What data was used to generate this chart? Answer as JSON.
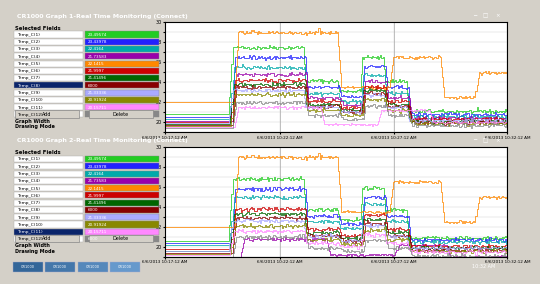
{
  "title1": "CR1000 Graph 1-Real Time Monitoring (Connect)",
  "title2": "CR1000 Graph 2-Real Time Monitoring (Connect)",
  "bg_outer": "#d4d0c8",
  "title_bar_color": "#0a246a",
  "plot_bg": "#ffffff",
  "grid_color": "#cccccc",
  "sidebar_bg": "#d4d0c8",
  "ylim": [
    19,
    30
  ],
  "n_points": 300,
  "time_labels": [
    "6/6/2013 10:17:12 AM",
    "6/6/2013 10:22:12 AM",
    "6/6/2013 10:27:12 AM",
    "6/6/2013 10:32:12 AM"
  ],
  "line_colors": [
    "#22cc22",
    "#2222ff",
    "#00aaaa",
    "#9900aa",
    "#ff8800",
    "#cc0000",
    "#006600",
    "#880000",
    "#aaaaff",
    "#888800",
    "#ff88ff",
    "#888888"
  ],
  "sidebar_labels": [
    "Temp_C(1)",
    "Temp_C(2)",
    "Temp_C(3)",
    "Temp_C(4)",
    "Temp_C(5)",
    "Temp_C(6)",
    "Temp_C(7)",
    "Temp_C(8)",
    "Temp_C(9)",
    "Temp_C(10)",
    "Temp_C(11)",
    "Temp_C(12)"
  ],
  "sidebar_values1": [
    "23.49574",
    "23.43978",
    "22.4164",
    "21.73583",
    "22.1415",
    "21.9997",
    "21.41496",
    "6000",
    "21.33336",
    "20.91924",
    "20.15711",
    ""
  ],
  "sidebar_values2": [
    "23.49574",
    "23.43978",
    "22.4164",
    "21.73583",
    "22.1415",
    "21.9997",
    "21.41496",
    "6000",
    "21.33336",
    "20.91924",
    "20.15711",
    "6000"
  ],
  "highlight_row1": 7,
  "highlight_row2": 10
}
